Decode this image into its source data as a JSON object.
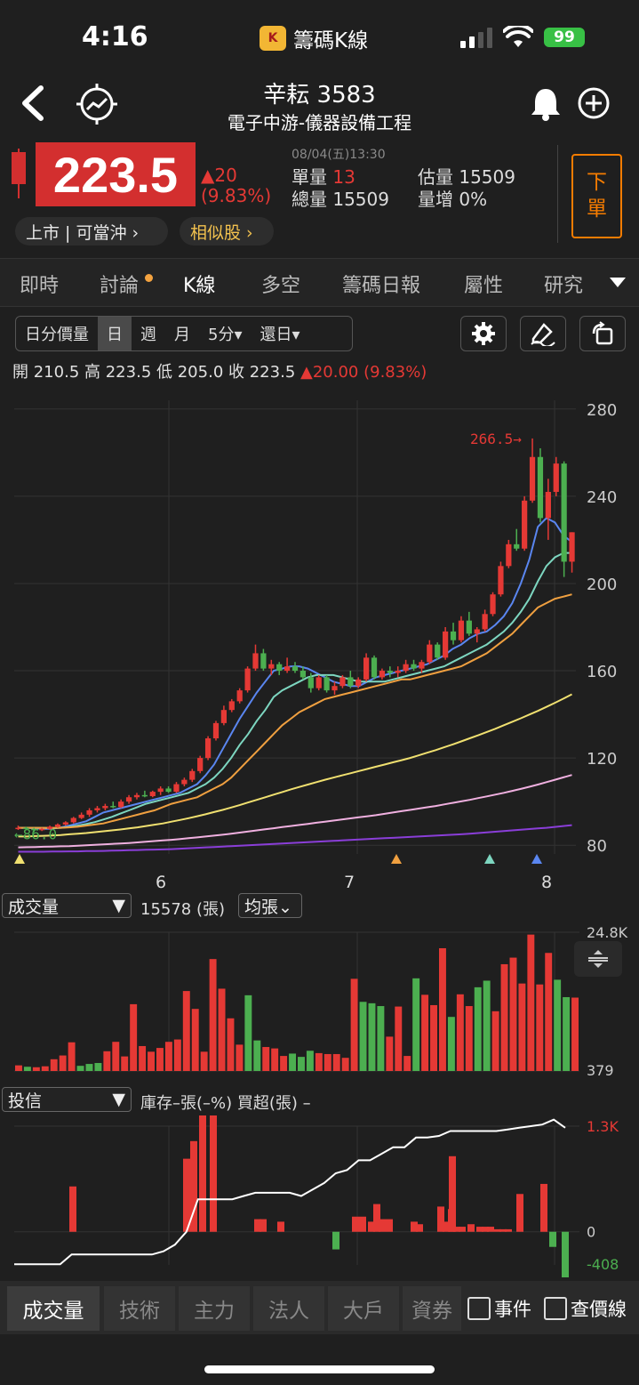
{
  "status_bar": {
    "time": "4:16",
    "app_name": "籌碼K線",
    "app_logo_text": "K",
    "battery": "99"
  },
  "header": {
    "stock_name": "辛耘 3583",
    "sector": "電子中游-儀器設備工程"
  },
  "quote": {
    "price": "223.5",
    "change": "▲20",
    "change_pct": "(9.83%)",
    "datetime": "08/04(五)13:30",
    "single_vol_label": "單量",
    "single_vol": "13",
    "total_vol_label": "總量",
    "total_vol": "15509",
    "est_vol_label": "估量",
    "est_vol": "15509",
    "vol_increase_label": "量增",
    "vol_increase": "0%",
    "order_btn": [
      "下",
      "單"
    ],
    "market_pill": "上市 | 可當沖 ›",
    "similar_pill": "相似股 ›"
  },
  "tabs": [
    "即時",
    "討論",
    "K線",
    "多空",
    "籌碼日報",
    "屬性",
    "研究"
  ],
  "active_tab": "K線",
  "toolbar": {
    "periods": [
      "日分價量",
      "日",
      "週",
      "月",
      "5分▾",
      "還日▾"
    ],
    "active_period": "日"
  },
  "ohlc": {
    "open_label": "開",
    "open": "210.5",
    "high_label": "高",
    "high": "223.5",
    "low_label": "低",
    "low": "205.0",
    "close_label": "收",
    "close": "223.5",
    "change": "▲20.00 (9.83%)"
  },
  "volume_panel": {
    "selector": "成交量",
    "value": "15578 (張)",
    "mode": "均張⌄",
    "max_label": "24.8K",
    "min_label": "379"
  },
  "trust_panel": {
    "selector": "投信",
    "info": "庫存–張(–%)  買超(張) –",
    "max_label": "1.3K",
    "zero_label": "0",
    "min_label": "-408"
  },
  "bottom_tabs": [
    "成交量",
    "技術",
    "主力",
    "法人",
    "大戶",
    "資券"
  ],
  "active_bottom_tab": "成交量",
  "checkboxes": [
    "事件",
    "查價線"
  ],
  "colors": {
    "up": "#e53935",
    "down": "#4caf50",
    "accent": "#f57c00"
  },
  "chart_data": {
    "type": "candlestick",
    "y_ticks": [
      "280",
      "240",
      "200",
      "160",
      "120",
      "80"
    ],
    "ylim": [
      76,
      284
    ],
    "x_ticks": [
      "6",
      "7",
      "8"
    ],
    "annotations": {
      "high_marker": "266.5→",
      "low_marker": "←86.0"
    },
    "candles": [
      [
        88,
        89,
        87,
        88
      ],
      [
        88,
        88.5,
        87,
        87.5
      ],
      [
        87.5,
        88,
        86,
        87
      ],
      [
        87,
        88,
        86.5,
        87.5
      ],
      [
        87.5,
        89,
        87,
        88.5
      ],
      [
        88.5,
        90,
        88,
        89.5
      ],
      [
        89.5,
        91,
        89,
        90.5
      ],
      [
        90.5,
        93,
        90,
        92.5
      ],
      [
        92.5,
        95,
        92,
        94
      ],
      [
        94,
        97,
        93,
        96
      ],
      [
        96,
        98,
        95,
        97
      ],
      [
        97,
        99,
        96,
        98
      ],
      [
        98,
        100,
        97,
        97.5
      ],
      [
        97.5,
        101,
        97,
        100
      ],
      [
        100,
        103,
        99,
        102
      ],
      [
        102,
        104,
        101,
        103
      ],
      [
        103,
        105,
        102,
        102.5
      ],
      [
        102.5,
        105,
        102,
        104.5
      ],
      [
        104.5,
        107,
        103,
        106
      ],
      [
        106,
        107,
        104,
        104.5
      ],
      [
        104.5,
        109,
        104,
        108
      ],
      [
        108,
        111,
        107,
        110
      ],
      [
        110,
        115,
        109,
        114
      ],
      [
        114,
        121,
        113,
        120
      ],
      [
        120,
        130,
        119,
        129
      ],
      [
        129,
        137,
        128,
        136
      ],
      [
        136,
        144,
        135,
        142
      ],
      [
        142,
        147,
        141,
        146
      ],
      [
        146,
        152,
        145,
        151
      ],
      [
        151,
        162,
        150,
        161
      ],
      [
        161,
        172,
        160,
        168
      ],
      [
        168,
        170,
        160,
        161
      ],
      [
        161,
        165,
        158,
        163
      ],
      [
        163,
        164,
        158,
        160
      ],
      [
        160,
        166,
        159,
        162
      ],
      [
        162,
        164,
        159,
        160
      ],
      [
        160,
        162,
        156,
        157
      ],
      [
        157,
        159,
        150,
        152
      ],
      [
        152,
        158,
        151,
        157
      ],
      [
        157,
        158,
        150,
        151
      ],
      [
        151,
        155,
        149,
        153
      ],
      [
        153,
        158,
        152,
        157
      ],
      [
        157,
        160,
        152,
        153
      ],
      [
        153,
        157,
        152,
        156
      ],
      [
        156,
        168,
        155,
        166
      ],
      [
        166,
        167,
        156,
        157
      ],
      [
        157,
        161,
        156,
        160
      ],
      [
        160,
        162,
        157,
        159
      ],
      [
        159,
        162,
        157,
        160
      ],
      [
        160,
        165,
        159,
        163
      ],
      [
        163,
        165,
        160,
        161
      ],
      [
        161,
        165,
        159,
        164
      ],
      [
        164,
        174,
        163,
        172
      ],
      [
        172,
        173,
        165,
        166
      ],
      [
        166,
        180,
        165,
        178
      ],
      [
        178,
        182,
        172,
        174
      ],
      [
        174,
        185,
        173,
        183
      ],
      [
        183,
        187,
        176,
        177
      ],
      [
        177,
        180,
        173,
        179
      ],
      [
        179,
        188,
        178,
        186
      ],
      [
        186,
        196,
        185,
        195
      ],
      [
        195,
        210,
        194,
        208
      ],
      [
        208,
        220,
        207,
        218
      ],
      [
        218,
        225,
        215,
        216
      ],
      [
        216,
        240,
        215,
        238
      ],
      [
        238,
        266.5,
        237,
        258
      ],
      [
        258,
        262,
        228,
        230
      ],
      [
        230,
        248,
        220,
        242
      ],
      [
        242,
        258,
        240,
        255
      ],
      [
        255,
        256,
        203,
        210
      ],
      [
        210,
        223.5,
        205,
        223.5
      ]
    ],
    "volume": [
      [
        1.2,
        1
      ],
      [
        0.9,
        0
      ],
      [
        0.8,
        1
      ],
      [
        1.0,
        1
      ],
      [
        2.5,
        1
      ],
      [
        3.3,
        1
      ],
      [
        6.1,
        1
      ],
      [
        1.1,
        0
      ],
      [
        1.5,
        0
      ],
      [
        1.7,
        0
      ],
      [
        4.2,
        1
      ],
      [
        6.2,
        1
      ],
      [
        3.1,
        1
      ],
      [
        14.2,
        1
      ],
      [
        5.3,
        1
      ],
      [
        4.1,
        1
      ],
      [
        4.9,
        1
      ],
      [
        6.2,
        1
      ],
      [
        6.7,
        1
      ],
      [
        17.0,
        1
      ],
      [
        13.2,
        1
      ],
      [
        4.1,
        1
      ],
      [
        23.8,
        1
      ],
      [
        17.5,
        1
      ],
      [
        11.2,
        1
      ],
      [
        5.6,
        1
      ],
      [
        16.1,
        0
      ],
      [
        6.5,
        0
      ],
      [
        5.1,
        1
      ],
      [
        4.8,
        1
      ],
      [
        3.2,
        1
      ],
      [
        3.7,
        0
      ],
      [
        3.0,
        0
      ],
      [
        4.3,
        0
      ],
      [
        3.8,
        1
      ],
      [
        3.6,
        1
      ],
      [
        3.6,
        1
      ],
      [
        2.8,
        1
      ],
      [
        19.6,
        1
      ],
      [
        14.7,
        0
      ],
      [
        14.4,
        0
      ],
      [
        13.8,
        0
      ],
      [
        7.3,
        1
      ],
      [
        13.7,
        1
      ],
      [
        3.2,
        1
      ],
      [
        19.7,
        0
      ],
      [
        16.2,
        1
      ],
      [
        14.0,
        1
      ],
      [
        26.1,
        1
      ],
      [
        11.5,
        0
      ],
      [
        16.3,
        1
      ],
      [
        13.8,
        1
      ],
      [
        17.8,
        0
      ],
      [
        19.2,
        0
      ],
      [
        12.7,
        1
      ],
      [
        22.7,
        1
      ],
      [
        24.1,
        1
      ],
      [
        18.6,
        1
      ],
      [
        29.0,
        1
      ],
      [
        18.4,
        1
      ],
      [
        25.1,
        1
      ],
      [
        19.4,
        0
      ],
      [
        15.7,
        0
      ],
      [
        15.6,
        1
      ]
    ],
    "trust_bars": [
      [
        90,
        1
      ],
      [
        240,
        1
      ],
      [
        145,
        1
      ],
      [
        180,
        1
      ],
      [
        300,
        1
      ],
      [
        25,
        1
      ],
      [
        25,
        1
      ],
      [
        20,
        1
      ],
      [
        -35,
        0
      ],
      [
        30,
        1
      ],
      [
        30,
        1
      ],
      [
        20,
        1
      ],
      [
        55,
        1
      ],
      [
        25,
        1
      ],
      [
        25,
        1
      ],
      [
        20,
        1
      ],
      [
        15,
        1
      ],
      [
        50,
        1
      ],
      [
        20,
        1
      ],
      [
        10,
        1
      ],
      [
        45,
        1
      ],
      [
        10,
        1
      ],
      [
        15,
        1
      ],
      [
        150,
        1
      ],
      [
        10,
        1
      ],
      [
        10,
        1
      ],
      [
        10,
        1
      ],
      [
        5,
        1
      ],
      [
        5,
        1
      ],
      [
        5,
        1
      ],
      [
        75,
        1
      ],
      [
        95,
        1
      ],
      [
        -30,
        0
      ],
      [
        -110,
        0
      ]
    ],
    "trust_line": [
      -100,
      -100,
      -100,
      -100,
      -100,
      -70,
      -70,
      -70,
      -70,
      -70,
      -70,
      -70,
      -70,
      -60,
      -40,
      0,
      100,
      100,
      100,
      100,
      110,
      120,
      120,
      120,
      120,
      110,
      130,
      150,
      180,
      190,
      220,
      220,
      240,
      260,
      260,
      290,
      290,
      295,
      310,
      310,
      310,
      310,
      310,
      315,
      320,
      325,
      330,
      345,
      320
    ],
    "ma_series": [
      {
        "name": "MA5",
        "color": "#5a86f0",
        "values": [
          88,
          88,
          87.7,
          87.5,
          87.6,
          88.2,
          89,
          90,
          91,
          93,
          95,
          96,
          97,
          98,
          99,
          100,
          101,
          102,
          103,
          104,
          106,
          108,
          112,
          117,
          124,
          131,
          138,
          144,
          150,
          155,
          160,
          161,
          162,
          162,
          161,
          159,
          157,
          155,
          154,
          153,
          153,
          155,
          157,
          158,
          159,
          160,
          161,
          162,
          163,
          165,
          167,
          170,
          172,
          175,
          177,
          178,
          181,
          185,
          191,
          200,
          211,
          226,
          230,
          228,
          222,
          219
        ]
      },
      {
        "name": "MA10",
        "color": "#7dd6c0",
        "values": [
          88,
          88,
          88,
          87.9,
          87.8,
          88,
          88.4,
          89,
          89.7,
          90.6,
          91.8,
          93,
          94.5,
          96,
          97.5,
          99,
          100,
          101,
          102,
          103,
          104,
          106,
          108,
          111,
          115,
          120,
          126,
          131,
          137,
          142,
          148,
          151,
          153,
          155,
          157,
          158,
          158,
          158,
          157,
          156,
          155,
          155,
          155,
          155,
          156,
          157,
          158,
          159,
          160,
          161,
          162,
          164,
          166,
          168,
          170,
          172,
          175,
          178,
          182,
          187,
          193,
          201,
          208,
          212,
          214,
          214
        ]
      },
      {
        "name": "MA20",
        "color": "#f0a040",
        "values": [
          88,
          88,
          88,
          88,
          88,
          88,
          88.2,
          88.5,
          89,
          89.5,
          90,
          91,
          92,
          93,
          94,
          95,
          96,
          97.5,
          99,
          100,
          101,
          102,
          104,
          106,
          108,
          111,
          115,
          119,
          123,
          127,
          131,
          135,
          138,
          141,
          143,
          145,
          147,
          148,
          149,
          150,
          151,
          152,
          153,
          154,
          155,
          156,
          156,
          157,
          158,
          159,
          160,
          161,
          162,
          164,
          166,
          168,
          171,
          174,
          177,
          181,
          185,
          189,
          191,
          193,
          194,
          195
        ]
      },
      {
        "name": "MA60",
        "color": "#f0e070",
        "values": [
          84,
          84,
          84.2,
          84.3,
          84.5,
          84.7,
          85,
          85.3,
          85.6,
          86,
          86.4,
          86.8,
          87.2,
          87.7,
          88.2,
          88.8,
          89.4,
          90,
          90.8,
          91.6,
          92.4,
          93.3,
          94.2,
          95.2,
          96.2,
          97.3,
          98.4,
          99.6,
          100.8,
          102,
          103.2,
          104.4,
          105.6,
          106.7,
          107.8,
          108.9,
          110,
          111,
          112,
          113,
          114,
          115,
          116,
          117,
          118,
          119,
          120,
          121.2,
          122.4,
          123.6,
          124.9,
          126.2,
          127.6,
          129,
          130.4,
          131.9,
          133.4,
          135,
          136.6,
          138.2,
          139.9,
          141.6,
          143.4,
          145.3,
          147.2,
          149.2
        ]
      },
      {
        "name": "MA120",
        "color": "#f0b0e0",
        "values": [
          79,
          79.1,
          79.2,
          79.3,
          79.4,
          79.5,
          79.6,
          79.8,
          80,
          80.2,
          80.4,
          80.6,
          80.8,
          81,
          81.3,
          81.6,
          81.9,
          82.2,
          82.5,
          82.8,
          83.2,
          83.6,
          84,
          84.4,
          84.8,
          85.3,
          85.8,
          86.3,
          86.8,
          87.3,
          87.8,
          88.3,
          88.8,
          89.3,
          89.8,
          90.3,
          90.8,
          91.3,
          91.8,
          92.3,
          92.8,
          93.3,
          93.8,
          94.4,
          95,
          95.6,
          96.2,
          96.8,
          97.4,
          98,
          98.7,
          99.4,
          100.1,
          100.8,
          101.6,
          102.4,
          103.2,
          104,
          104.9,
          105.8,
          106.8,
          107.8,
          108.9,
          110,
          111.1,
          112.2
        ]
      },
      {
        "name": "MA240",
        "color": "#8a3ed8",
        "values": [
          77,
          77,
          77,
          77,
          77.1,
          77.1,
          77.2,
          77.2,
          77.3,
          77.3,
          77.4,
          77.5,
          77.6,
          77.7,
          77.8,
          77.9,
          78,
          78.1,
          78.2,
          78.4,
          78.6,
          78.8,
          79,
          79.2,
          79.4,
          79.6,
          79.8,
          80,
          80.2,
          80.4,
          80.6,
          80.8,
          81,
          81.2,
          81.4,
          81.6,
          81.8,
          82,
          82.2,
          82.4,
          82.6,
          82.8,
          83,
          83.2,
          83.4,
          83.6,
          83.8,
          84,
          84.2,
          84.4,
          84.6,
          84.8,
          85,
          85.3,
          85.6,
          85.9,
          86.2,
          86.5,
          86.8,
          87.1,
          87.4,
          87.7,
          88,
          88.4,
          88.8,
          89.2
        ]
      }
    ]
  }
}
